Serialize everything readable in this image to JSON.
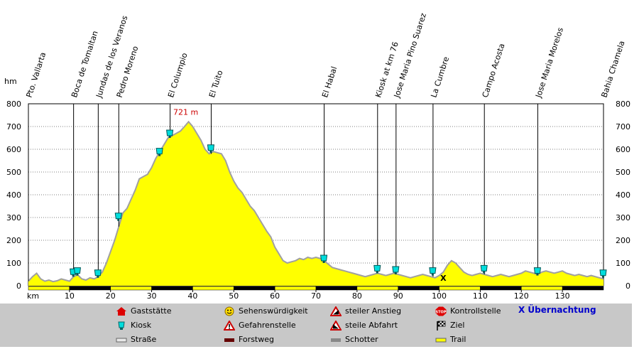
{
  "chart_data": {
    "type": "area",
    "y_unit_label": "hm",
    "x_unit_label": "km",
    "xlim": [
      0,
      140
    ],
    "ylim": [
      0,
      800
    ],
    "x_ticks": [
      10,
      20,
      30,
      40,
      50,
      60,
      70,
      80,
      90,
      100,
      110,
      120,
      130
    ],
    "y_ticks": [
      0,
      100,
      200,
      300,
      400,
      500,
      600,
      700,
      800
    ],
    "fill_color": "#ffff00",
    "outline_color": "#a0a0a0",
    "peak_label": "721 m",
    "peak": {
      "x": 39,
      "y": 721
    },
    "profile": [
      [
        0,
        20
      ],
      [
        1,
        40
      ],
      [
        2,
        55
      ],
      [
        3,
        30
      ],
      [
        4,
        20
      ],
      [
        5,
        25
      ],
      [
        6,
        18
      ],
      [
        7,
        22
      ],
      [
        8,
        30
      ],
      [
        9,
        25
      ],
      [
        10,
        20
      ],
      [
        11,
        40
      ],
      [
        12,
        48
      ],
      [
        13,
        30
      ],
      [
        14,
        25
      ],
      [
        15,
        35
      ],
      [
        16,
        30
      ],
      [
        17,
        40
      ],
      [
        18,
        60
      ],
      [
        19,
        100
      ],
      [
        20,
        150
      ],
      [
        21,
        200
      ],
      [
        22,
        260
      ],
      [
        23,
        320
      ],
      [
        24,
        340
      ],
      [
        25,
        380
      ],
      [
        26,
        420
      ],
      [
        27,
        470
      ],
      [
        28,
        480
      ],
      [
        29,
        490
      ],
      [
        30,
        520
      ],
      [
        31,
        560
      ],
      [
        32,
        590
      ],
      [
        33,
        620
      ],
      [
        34,
        650
      ],
      [
        35,
        660
      ],
      [
        36,
        670
      ],
      [
        37,
        680
      ],
      [
        38,
        700
      ],
      [
        39,
        721
      ],
      [
        40,
        700
      ],
      [
        41,
        670
      ],
      [
        42,
        640
      ],
      [
        43,
        600
      ],
      [
        44,
        580
      ],
      [
        45,
        590
      ],
      [
        46,
        585
      ],
      [
        47,
        580
      ],
      [
        48,
        550
      ],
      [
        49,
        500
      ],
      [
        50,
        460
      ],
      [
        51,
        430
      ],
      [
        52,
        410
      ],
      [
        53,
        380
      ],
      [
        54,
        350
      ],
      [
        55,
        330
      ],
      [
        56,
        300
      ],
      [
        57,
        270
      ],
      [
        58,
        240
      ],
      [
        59,
        215
      ],
      [
        60,
        170
      ],
      [
        61,
        140
      ],
      [
        62,
        110
      ],
      [
        63,
        100
      ],
      [
        64,
        105
      ],
      [
        65,
        110
      ],
      [
        66,
        120
      ],
      [
        67,
        115
      ],
      [
        68,
        125
      ],
      [
        69,
        120
      ],
      [
        70,
        125
      ],
      [
        71,
        120
      ],
      [
        72,
        110
      ],
      [
        73,
        95
      ],
      [
        74,
        80
      ],
      [
        75,
        75
      ],
      [
        76,
        70
      ],
      [
        77,
        65
      ],
      [
        78,
        60
      ],
      [
        79,
        55
      ],
      [
        80,
        50
      ],
      [
        81,
        45
      ],
      [
        82,
        40
      ],
      [
        83,
        45
      ],
      [
        84,
        50
      ],
      [
        85,
        55
      ],
      [
        86,
        50
      ],
      [
        87,
        45
      ],
      [
        88,
        50
      ],
      [
        89,
        55
      ],
      [
        90,
        50
      ],
      [
        91,
        45
      ],
      [
        92,
        40
      ],
      [
        93,
        35
      ],
      [
        94,
        40
      ],
      [
        95,
        45
      ],
      [
        96,
        50
      ],
      [
        97,
        45
      ],
      [
        98,
        40
      ],
      [
        99,
        35
      ],
      [
        100,
        45
      ],
      [
        101,
        60
      ],
      [
        102,
        90
      ],
      [
        103,
        110
      ],
      [
        104,
        100
      ],
      [
        105,
        80
      ],
      [
        106,
        60
      ],
      [
        107,
        50
      ],
      [
        108,
        45
      ],
      [
        109,
        50
      ],
      [
        110,
        55
      ],
      [
        111,
        50
      ],
      [
        112,
        45
      ],
      [
        113,
        40
      ],
      [
        114,
        45
      ],
      [
        115,
        50
      ],
      [
        116,
        45
      ],
      [
        117,
        40
      ],
      [
        118,
        45
      ],
      [
        119,
        50
      ],
      [
        120,
        55
      ],
      [
        121,
        65
      ],
      [
        122,
        60
      ],
      [
        123,
        55
      ],
      [
        124,
        50
      ],
      [
        125,
        60
      ],
      [
        126,
        65
      ],
      [
        127,
        60
      ],
      [
        128,
        55
      ],
      [
        129,
        60
      ],
      [
        130,
        65
      ],
      [
        131,
        55
      ],
      [
        132,
        50
      ],
      [
        133,
        45
      ],
      [
        134,
        50
      ],
      [
        135,
        45
      ],
      [
        136,
        40
      ],
      [
        137,
        45
      ],
      [
        138,
        40
      ],
      [
        139,
        35
      ],
      [
        140,
        30
      ]
    ],
    "places": [
      {
        "name": "Pto. Vallarta",
        "km": 0
      },
      {
        "name": "Boca de Tomaltan",
        "km": 11
      },
      {
        "name": "Jundas de los Veranos",
        "km": 17
      },
      {
        "name": "Pedro Moreno",
        "km": 22
      },
      {
        "name": "El Columpio",
        "km": 34.5
      },
      {
        "name": "El Tuito",
        "km": 44.5
      },
      {
        "name": "El Habal",
        "km": 72
      },
      {
        "name": "Kiosk at km 76",
        "km": 85
      },
      {
        "name": "Jose Maria Pino Suarez",
        "km": 89.5
      },
      {
        "name": "La Cumbre",
        "km": 98.5
      },
      {
        "name": "Campo Acosta",
        "km": 111
      },
      {
        "name": "Jose Maria Morelos",
        "km": 124
      },
      {
        "name": "Bahia Chamela",
        "km": 140
      }
    ],
    "kiosks": [
      [
        11,
        40
      ],
      [
        12,
        45
      ],
      [
        17,
        35
      ],
      [
        22,
        285
      ],
      [
        32,
        570
      ],
      [
        34.5,
        650
      ],
      [
        44.5,
        585
      ],
      [
        72,
        100
      ],
      [
        85,
        55
      ],
      [
        89.5,
        50
      ],
      [
        98.5,
        45
      ],
      [
        111,
        55
      ],
      [
        124,
        45
      ],
      [
        140,
        35
      ]
    ],
    "overnight_marker": {
      "km": 101,
      "y": 35,
      "label": "X"
    },
    "surface_segments": [
      {
        "from": 0,
        "to": 10,
        "type": "trail"
      },
      {
        "from": 10,
        "to": 20,
        "type": "forest"
      },
      {
        "from": 20,
        "to": 30,
        "type": "trail"
      },
      {
        "from": 30,
        "to": 40,
        "type": "forest"
      },
      {
        "from": 40,
        "to": 50,
        "type": "trail"
      },
      {
        "from": 50,
        "to": 60,
        "type": "forest"
      },
      {
        "from": 60,
        "to": 70,
        "type": "trail"
      },
      {
        "from": 70,
        "to": 80,
        "type": "forest"
      },
      {
        "from": 80,
        "to": 90,
        "type": "trail"
      },
      {
        "from": 90,
        "to": 100,
        "type": "forest"
      },
      {
        "from": 100,
        "to": 110,
        "type": "trail"
      },
      {
        "from": 110,
        "to": 120,
        "type": "forest"
      },
      {
        "from": 120,
        "to": 130,
        "type": "trail"
      },
      {
        "from": 130,
        "to": 140,
        "type": "forest"
      }
    ]
  },
  "legend": {
    "gaststaette": "Gaststätte",
    "kiosk": "Kiosk",
    "strasse": "Straße",
    "sehenswuerdigkeit": "Sehenswürdigkeit",
    "gefahrenstelle": "Gefahrenstelle",
    "forstweg": "Forstweg",
    "steiler_anstieg": "steiler Anstieg",
    "steile_abfahrt": "steile Abfahrt",
    "schotter": "Schotter",
    "kontrollstelle": "Kontrollstelle",
    "stop_text": "STOP",
    "ziel": "Ziel",
    "trail": "Trail",
    "uebernachtung": "X Übernachtung"
  },
  "colors": {
    "profile_fill": "#ffff00",
    "kiosk": "#00dddd",
    "legend_bg": "#c8c8c8",
    "gaststaette": "#dd0000",
    "overnight": "#0000cc"
  }
}
